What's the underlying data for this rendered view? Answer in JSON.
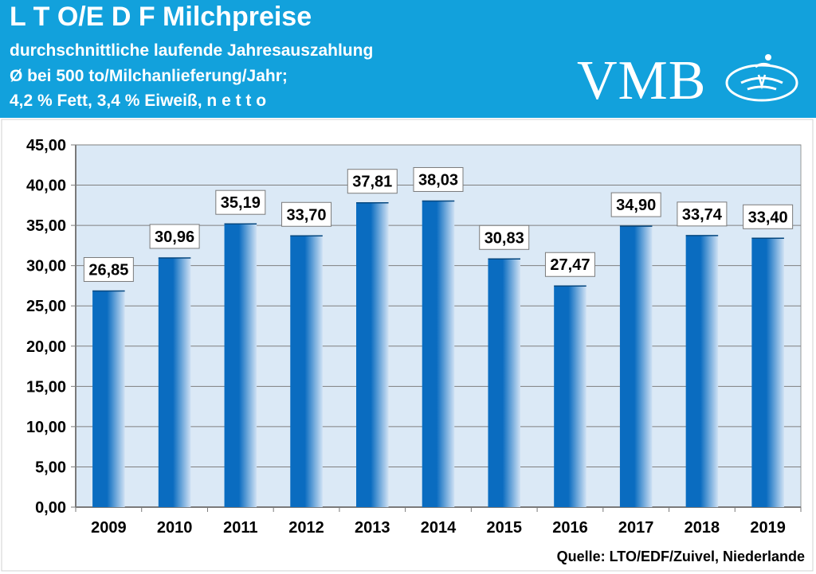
{
  "header": {
    "title": "L T O/E D F Milchpreise",
    "subtitle_1": "durchschnittliche laufende Jahresauszahlung",
    "subtitle_2": "Ø bei 500 to/Milchanlieferung/Jahr;",
    "subtitle_3": "4,2 % Fett, 3,4 % Eiweiß, n e t t o",
    "logo_text": "VMB"
  },
  "colors": {
    "header_bg": "#12a1dc",
    "plot_bg": "#dbe9f6",
    "bar_dark": "#0a6cc0",
    "bar_light": "#cfe1f4"
  },
  "chart_data": {
    "type": "bar",
    "title": "L T O/E D F Milchpreise",
    "categories": [
      "2009",
      "2010",
      "2011",
      "2012",
      "2013",
      "2014",
      "2015",
      "2016",
      "2017",
      "2018",
      "2019"
    ],
    "values": [
      26.85,
      30.96,
      35.19,
      33.7,
      37.81,
      38.03,
      30.83,
      27.47,
      34.9,
      33.74,
      33.4
    ],
    "value_labels": [
      "26,85",
      "30,96",
      "35,19",
      "33,70",
      "37,81",
      "38,03",
      "30,83",
      "27,47",
      "34,90",
      "33,74",
      "33,40"
    ],
    "y_ticks": [
      0,
      5,
      10,
      15,
      20,
      25,
      30,
      35,
      40,
      45
    ],
    "y_tick_labels": [
      "0,00",
      "5,00",
      "10,00",
      "15,00",
      "20,00",
      "25,00",
      "30,00",
      "35,00",
      "40,00",
      "45,00"
    ],
    "ylim": [
      0,
      45
    ],
    "xlabel": "",
    "ylabel": "",
    "grid": true
  },
  "source": "Quelle: LTO/EDF/Zuivel, Niederlande"
}
